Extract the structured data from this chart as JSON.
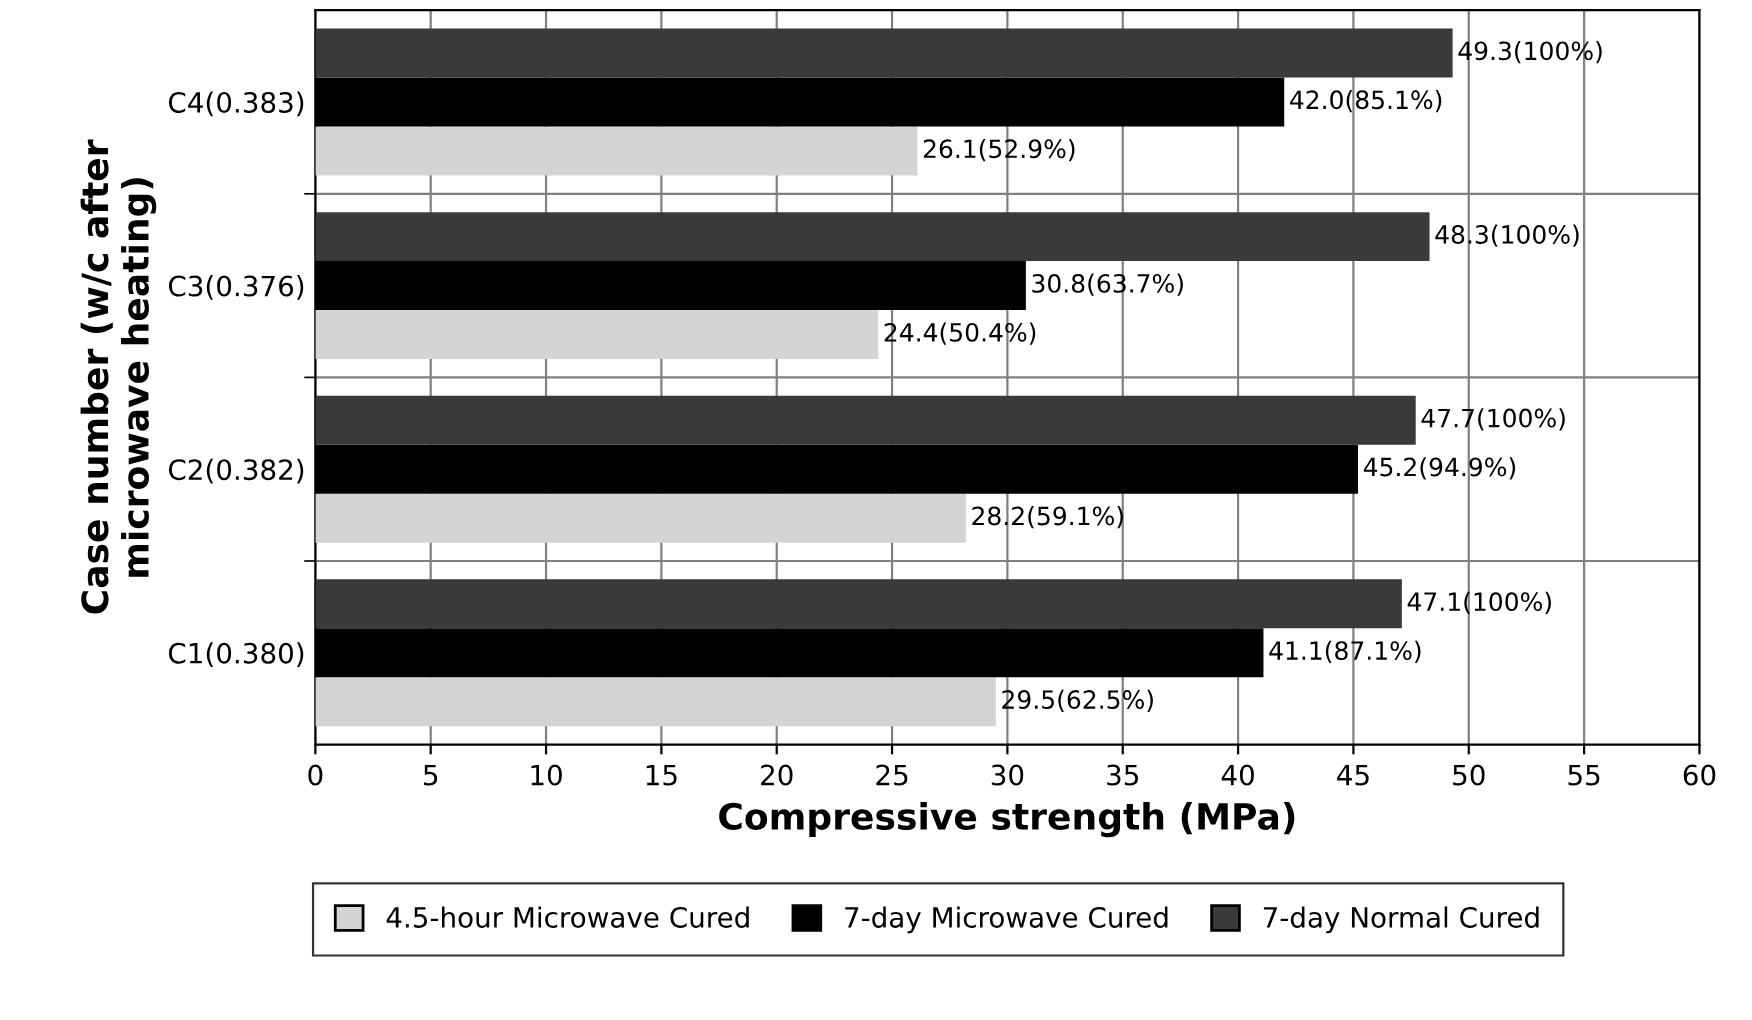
{
  "chart_data": {
    "type": "bar",
    "orientation": "horizontal",
    "xlabel": "Compressive strength (MPa)",
    "ylabel": "Case number (w/c after\nmicrowave heating)",
    "categories": [
      "C4(0.383)",
      "C3(0.376)",
      "C2(0.382)",
      "C1(0.380)"
    ],
    "series": [
      {
        "name": "4.5-hour Microwave Cured",
        "color": "#d4d4d4",
        "values": [
          26.1,
          24.4,
          28.2,
          29.5
        ],
        "value_labels": [
          "26.1(52.9%)",
          "24.4(50.4%)",
          "28.2(59.1%)",
          "29.5(62.5%)"
        ]
      },
      {
        "name": "7-day Microwave Cured",
        "color": "#000000",
        "values": [
          42.0,
          30.8,
          45.2,
          41.1
        ],
        "value_labels": [
          "42.0(85.1%)",
          "30.8(63.7%)",
          "45.2(94.9%)",
          "41.1(87.1%)"
        ]
      },
      {
        "name": "7-day Normal Cured",
        "color": "#3a3a3a",
        "values": [
          49.3,
          48.3,
          47.7,
          47.1
        ],
        "value_labels": [
          "49.3(100%)",
          "48.3(100%)",
          "47.7(100%)",
          "47.1(100%)"
        ]
      }
    ],
    "xlim": [
      0,
      60
    ],
    "xticks": [
      0,
      5,
      10,
      15,
      20,
      25,
      30,
      35,
      40,
      45,
      50,
      55,
      60
    ],
    "grid": true,
    "legend": "bottom"
  }
}
